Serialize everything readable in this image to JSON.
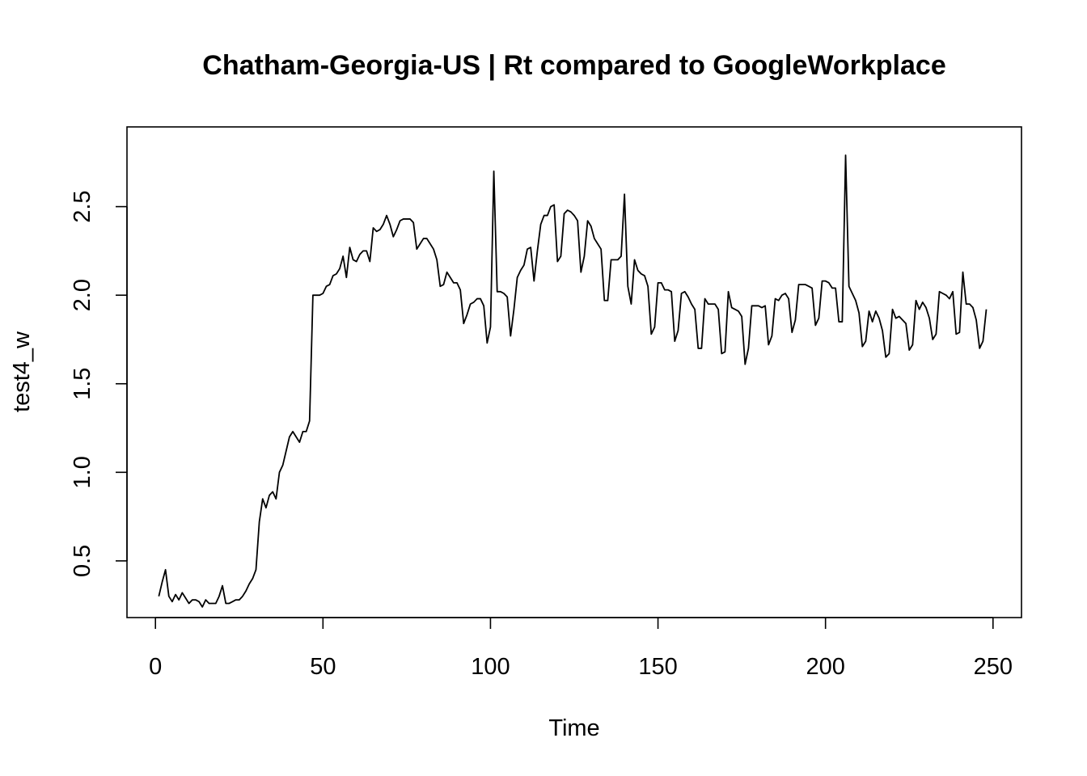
{
  "chart_data": {
    "type": "line",
    "title": "Chatham-Georgia-US | Rt compared to GoogleWorkplace",
    "xlabel": "Time",
    "ylabel": "test4_w",
    "xlim": [
      -8.5,
      258.5
    ],
    "ylim": [
      0.18,
      2.95
    ],
    "x_ticks": [
      0,
      50,
      100,
      150,
      200,
      250
    ],
    "x_tick_labels": [
      "0",
      "50",
      "100",
      "150",
      "200",
      "250"
    ],
    "y_ticks": [
      0.5,
      1.0,
      1.5,
      2.0,
      2.5
    ],
    "y_tick_labels": [
      "0.5",
      "1.0",
      "1.5",
      "2.0",
      "2.5"
    ],
    "grid": false,
    "series": [
      {
        "color": "#000000",
        "x_start": 1,
        "values": [
          0.3,
          0.38,
          0.45,
          0.3,
          0.27,
          0.31,
          0.28,
          0.32,
          0.29,
          0.26,
          0.28,
          0.28,
          0.27,
          0.24,
          0.28,
          0.26,
          0.26,
          0.26,
          0.3,
          0.36,
          0.26,
          0.26,
          0.27,
          0.28,
          0.28,
          0.3,
          0.33,
          0.37,
          0.4,
          0.45,
          0.72,
          0.85,
          0.8,
          0.87,
          0.89,
          0.85,
          1.0,
          1.04,
          1.12,
          1.2,
          1.23,
          1.2,
          1.17,
          1.23,
          1.23,
          1.29,
          2.0,
          2.0,
          2.0,
          2.01,
          2.05,
          2.06,
          2.11,
          2.12,
          2.15,
          2.22,
          2.1,
          2.27,
          2.2,
          2.19,
          2.23,
          2.25,
          2.25,
          2.19,
          2.38,
          2.36,
          2.37,
          2.4,
          2.45,
          2.4,
          2.33,
          2.37,
          2.42,
          2.43,
          2.43,
          2.43,
          2.41,
          2.26,
          2.29,
          2.32,
          2.32,
          2.29,
          2.26,
          2.2,
          2.05,
          2.06,
          2.13,
          2.1,
          2.07,
          2.07,
          2.03,
          1.84,
          1.89,
          1.95,
          1.96,
          1.98,
          1.98,
          1.94,
          1.73,
          1.82,
          2.7,
          2.02,
          2.02,
          2.01,
          1.99,
          1.77,
          1.92,
          2.1,
          2.14,
          2.17,
          2.26,
          2.27,
          2.08,
          2.25,
          2.4,
          2.45,
          2.45,
          2.5,
          2.51,
          2.19,
          2.22,
          2.46,
          2.48,
          2.47,
          2.45,
          2.42,
          2.13,
          2.22,
          2.42,
          2.39,
          2.32,
          2.29,
          2.26,
          1.97,
          1.97,
          2.2,
          2.2,
          2.2,
          2.22,
          2.57,
          2.05,
          1.95,
          2.2,
          2.14,
          2.12,
          2.11,
          2.05,
          1.78,
          1.82,
          2.07,
          2.07,
          2.03,
          2.03,
          2.02,
          1.74,
          1.8,
          2.01,
          2.02,
          1.99,
          1.95,
          1.92,
          1.7,
          1.7,
          1.98,
          1.95,
          1.95,
          1.95,
          1.92,
          1.67,
          1.68,
          2.02,
          1.93,
          1.92,
          1.91,
          1.88,
          1.61,
          1.7,
          1.94,
          1.94,
          1.94,
          1.93,
          1.94,
          1.72,
          1.77,
          1.98,
          1.97,
          2.0,
          2.01,
          1.98,
          1.79,
          1.86,
          2.06,
          2.06,
          2.06,
          2.05,
          2.04,
          1.83,
          1.87,
          2.08,
          2.08,
          2.07,
          2.04,
          2.04,
          1.85,
          1.85,
          2.79,
          2.05,
          2.01,
          1.97,
          1.9,
          1.71,
          1.74,
          1.91,
          1.85,
          1.91,
          1.87,
          1.8,
          1.65,
          1.67,
          1.92,
          1.87,
          1.88,
          1.86,
          1.84,
          1.69,
          1.72,
          1.97,
          1.92,
          1.96,
          1.93,
          1.87,
          1.75,
          1.78,
          2.02,
          2.01,
          2.0,
          1.98,
          2.02,
          1.78,
          1.79,
          2.13,
          1.95,
          1.95,
          1.93,
          1.86,
          1.7,
          1.74,
          1.92
        ]
      }
    ]
  }
}
